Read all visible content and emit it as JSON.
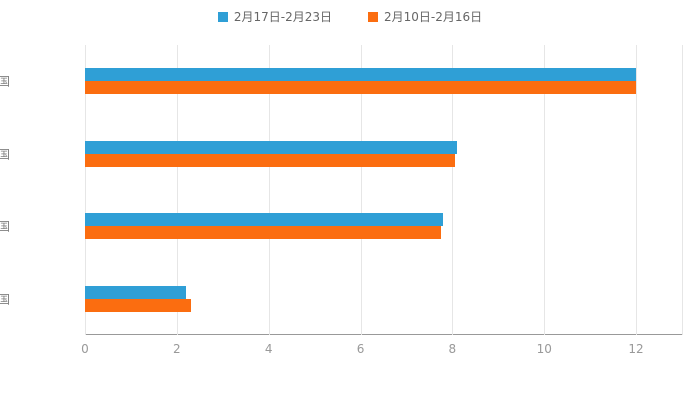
{
  "chart_data": {
    "type": "bar",
    "orientation": "horizontal",
    "categories": [
      "美国",
      "英国",
      "德国",
      "中国"
    ],
    "series": [
      {
        "name": "2月17日-2月23日",
        "color": "#2f9fd6",
        "values": [
          12,
          8.1,
          7.8,
          2.2
        ]
      },
      {
        "name": "2月10日-2月16日",
        "color": "#fb6d10",
        "values": [
          12,
          8.05,
          7.75,
          2.3
        ]
      }
    ],
    "title": "",
    "xlabel": "",
    "ylabel": "",
    "xlim": [
      0,
      13
    ],
    "xticks": [
      0,
      2,
      4,
      6,
      8,
      10,
      12
    ],
    "grid": true,
    "legend_position": "top-center",
    "colors": {
      "gridline": "#e6e6e6",
      "axis": "#999999",
      "tick_text": "#999999",
      "category_text": "#808080",
      "background": "#ffffff"
    }
  },
  "legend": {
    "items": [
      {
        "label": "2月17日-2月23日",
        "color": "#2f9fd6"
      },
      {
        "label": "2月10日-2月16日",
        "color": "#fb6d10"
      }
    ]
  }
}
